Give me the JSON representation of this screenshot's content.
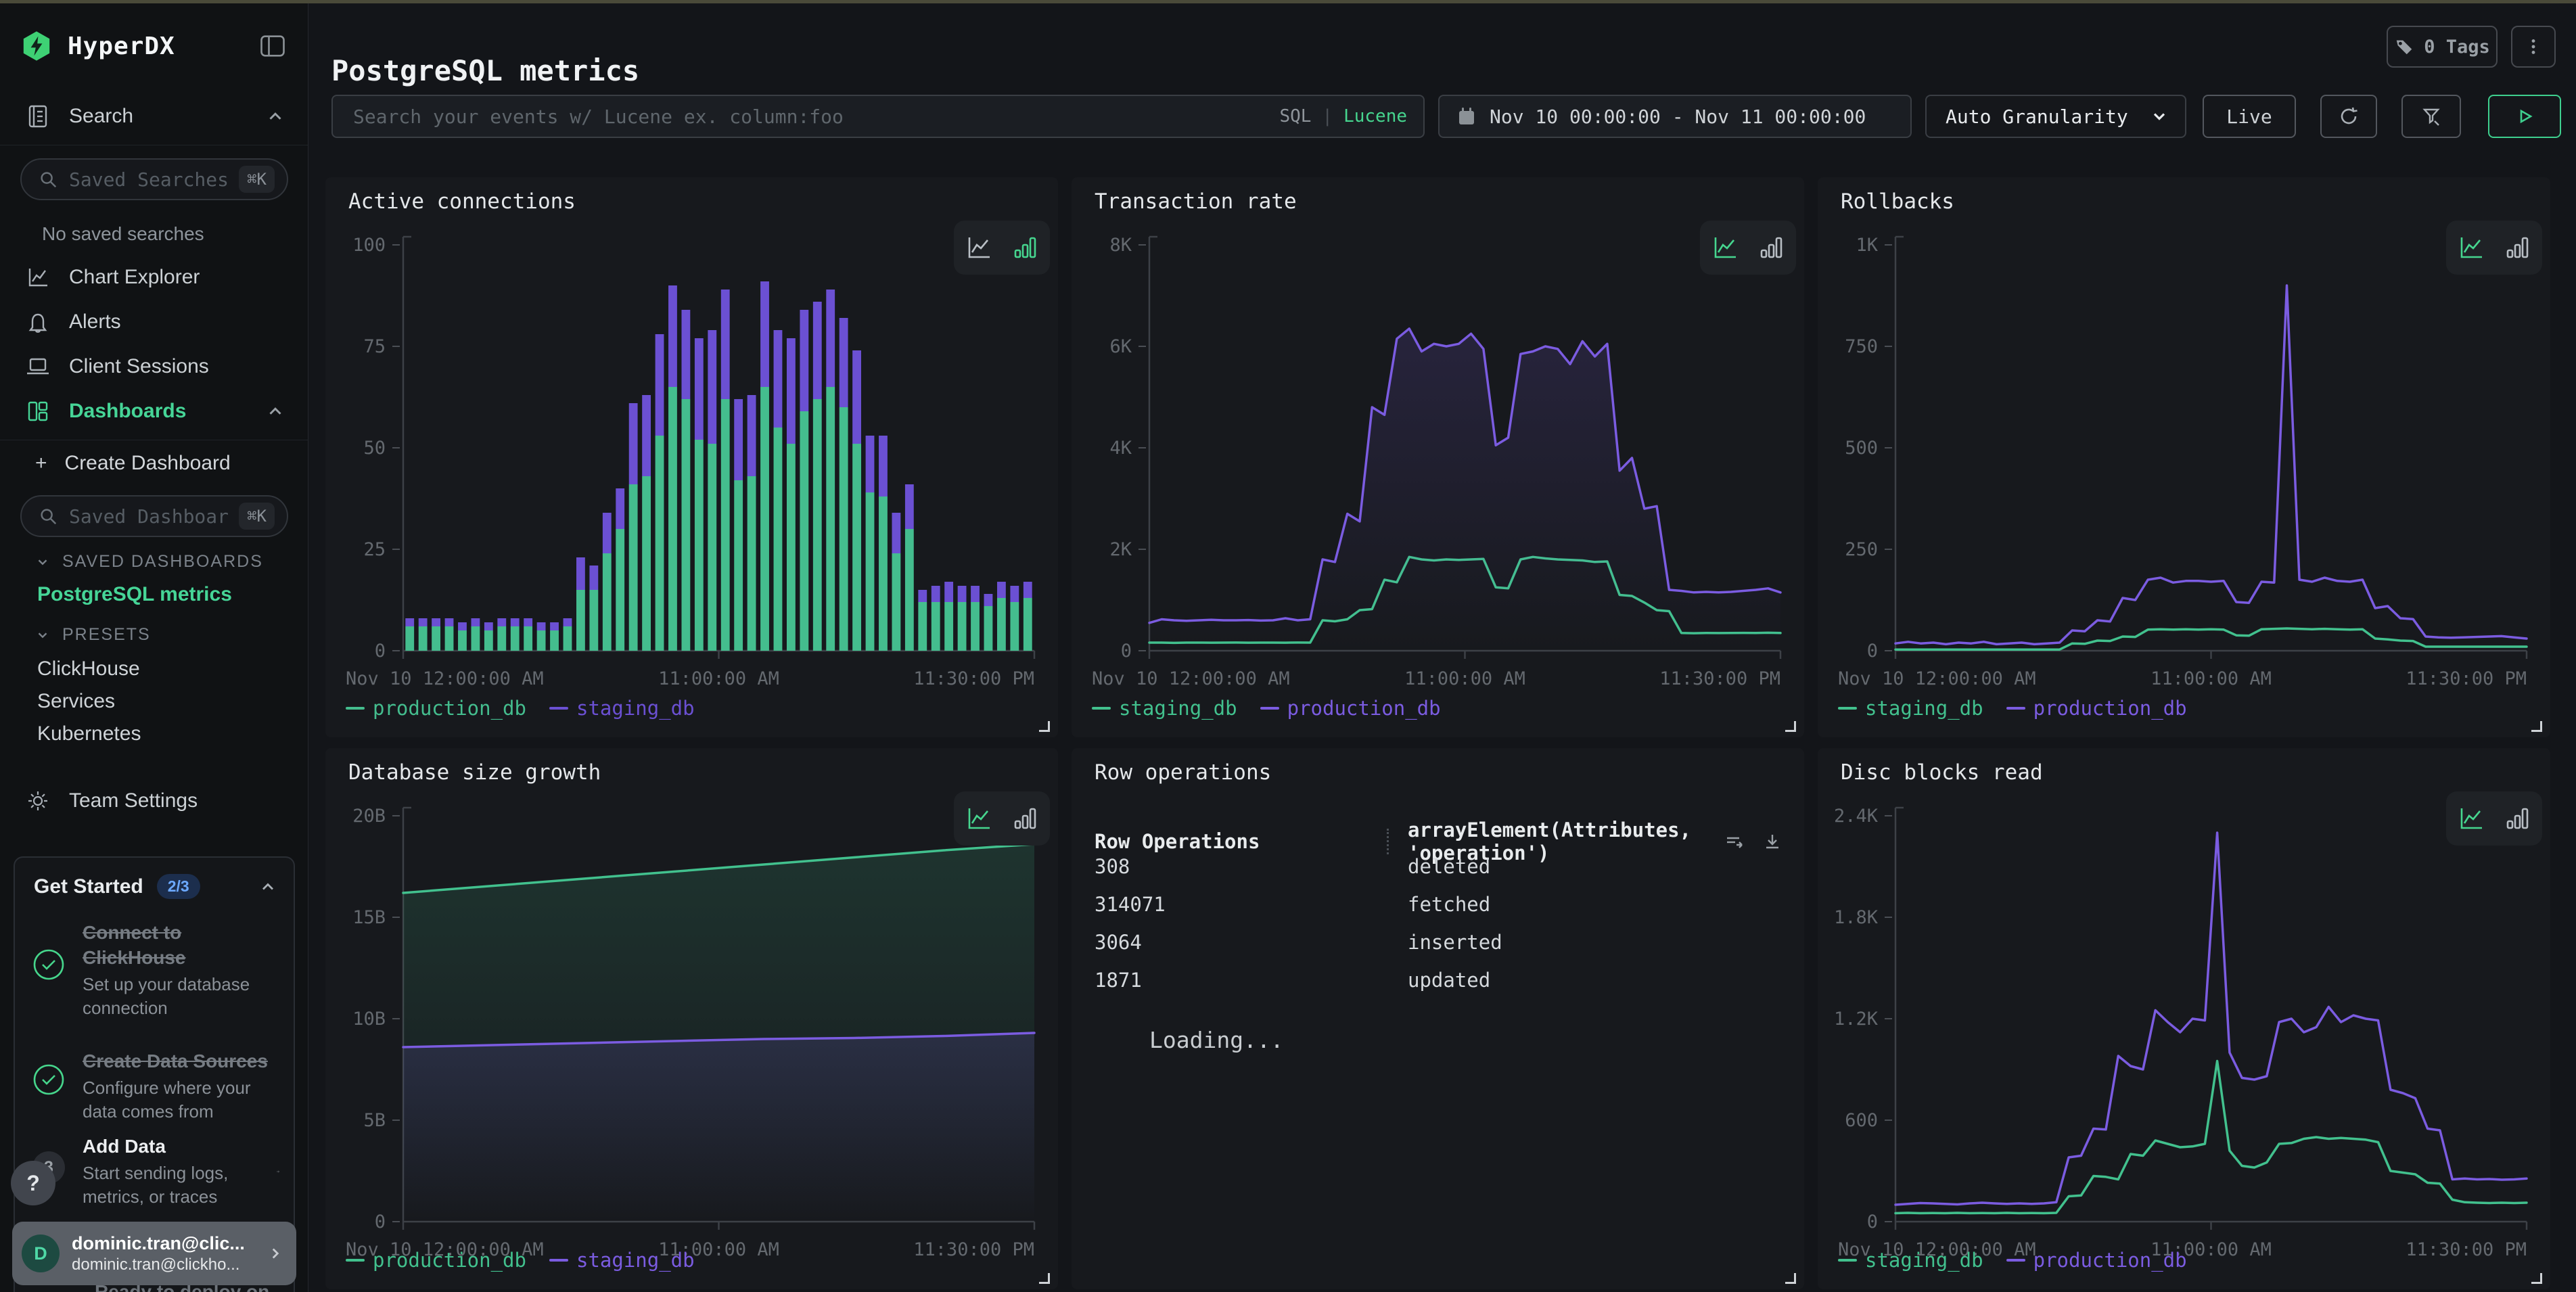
{
  "sidebar": {
    "logo": "HyperDX",
    "search_label": "Search",
    "no_saved_searches": "No saved searches",
    "saved_searches_placeholder": "Saved Searches",
    "saved_dashboards_placeholder": "Saved Dashboards",
    "shortcut": "⌘K",
    "nav_chart_explorer": "Chart Explorer",
    "nav_alerts": "Alerts",
    "nav_client_sessions": "Client Sessions",
    "nav_dashboards": "Dashboards",
    "create_dashboard_label": "Create Dashboard",
    "create_dashboard_plus": "+",
    "section_saved": "SAVED DASHBOARDS",
    "section_presets": "PRESETS",
    "saved_items": [
      "PostgreSQL metrics"
    ],
    "preset_items": [
      "ClickHouse",
      "Services",
      "Kubernetes"
    ],
    "team_settings": "Team Settings",
    "get_started": {
      "title": "Get Started",
      "badge": "2/3",
      "steps": [
        {
          "title": "Connect to ClickHouse",
          "desc": "Set up your database connection"
        },
        {
          "title": "Create Data Sources",
          "desc": "Configure where your data comes from"
        },
        {
          "title": "Add Data",
          "desc": "Start sending logs, metrics, or traces",
          "number": "3"
        }
      ],
      "hidden_step": "Ready to deploy on"
    },
    "help": "?",
    "user": {
      "initial": "D",
      "name": "dominic.tran@clic...",
      "email": "dominic.tran@clickho..."
    }
  },
  "header": {
    "title": "PostgreSQL metrics",
    "tags_label": "0 Tags"
  },
  "toolbar": {
    "search_placeholder": "Search your events w/ Lucene ex. column:foo",
    "sql": "SQL",
    "divider": "|",
    "lucene": "Lucene",
    "date_range": "Nov 10 00:00:00 - Nov 11 00:00:00",
    "granularity": "Auto Granularity",
    "live": "Live"
  },
  "colors": {
    "green_bar": "#44bd8e",
    "purple_bar": "#6b50d3",
    "green_line": "#42c18e",
    "purple_line": "#7b5ce1",
    "accent": "#46d597",
    "axis": "#3d4147",
    "tick_text": "#64696f"
  },
  "chart_data": [
    {
      "id": "c0",
      "type": "bar",
      "stacked": true,
      "title": "Active connections",
      "ymax": 100,
      "yticks": [
        {
          "v": 0,
          "l": "0"
        },
        {
          "v": 25,
          "l": "25"
        },
        {
          "v": 50,
          "l": "50"
        },
        {
          "v": 75,
          "l": "75"
        },
        {
          "v": 100,
          "l": "100"
        }
      ],
      "xticks": [
        "Nov 10 12:00:00 AM",
        "11:00:00 AM",
        "11:30:00 PM"
      ],
      "series": [
        {
          "name": "production_db",
          "color": "#44bd8e",
          "values": [
            6,
            6,
            6,
            6,
            5,
            6,
            5,
            6,
            6,
            6,
            5,
            5,
            6,
            15,
            15,
            24,
            30,
            41,
            43,
            53,
            65,
            62,
            52,
            51,
            62,
            42,
            43,
            65,
            55,
            51,
            59,
            62,
            65,
            60,
            51,
            39,
            38,
            24,
            30,
            12,
            12,
            12,
            12,
            12,
            11,
            13,
            12,
            13
          ]
        },
        {
          "name": "staging_db",
          "color": "#6b50d3",
          "values": [
            2,
            2,
            2,
            2,
            2,
            2,
            2,
            2,
            2,
            2,
            2,
            2,
            2,
            8,
            6,
            10,
            10,
            20,
            20,
            25,
            25,
            22,
            25,
            28,
            27,
            20,
            20,
            26,
            24,
            26,
            25,
            24,
            24,
            22,
            23,
            14,
            15,
            10,
            11,
            3,
            4,
            5,
            4,
            4,
            3,
            4,
            4,
            4
          ]
        }
      ]
    },
    {
      "id": "c1",
      "type": "line",
      "title": "Transaction rate",
      "ymax": 8000,
      "yticks": [
        {
          "v": 0,
          "l": "0"
        },
        {
          "v": 2000,
          "l": "2K"
        },
        {
          "v": 4000,
          "l": "4K"
        },
        {
          "v": 6000,
          "l": "6K"
        },
        {
          "v": 8000,
          "l": "8K"
        }
      ],
      "xticks": [
        "Nov 10 12:00:00 AM",
        "11:00:00 AM",
        "11:30:00 PM"
      ],
      "series": [
        {
          "name": "staging_db",
          "color": "#42c18e",
          "values": [
            160,
            160,
            155,
            160,
            160,
            158,
            160,
            162,
            158,
            160,
            160,
            158,
            162,
            160,
            600,
            580,
            620,
            800,
            820,
            1400,
            1350,
            1850,
            1800,
            1780,
            1800,
            1790,
            1800,
            1810,
            1250,
            1230,
            1800,
            1850,
            1820,
            1800,
            1790,
            1780,
            1750,
            1760,
            1100,
            1080,
            950,
            800,
            780,
            350,
            345,
            350,
            348,
            350,
            352,
            350,
            355,
            350
          ]
        },
        {
          "name": "production_db",
          "color": "#7b5ce1",
          "fill": true,
          "values": [
            550,
            620,
            600,
            590,
            600,
            610,
            600,
            600,
            605,
            595,
            600,
            640,
            600,
            620,
            1800,
            1750,
            2700,
            2550,
            4800,
            4650,
            6150,
            6350,
            5900,
            6050,
            6000,
            6050,
            6250,
            5950,
            4050,
            4200,
            5850,
            5900,
            6000,
            5950,
            5650,
            6100,
            5800,
            6050,
            3550,
            3800,
            2800,
            2850,
            1200,
            1180,
            1150,
            1160,
            1150,
            1160,
            1180,
            1200,
            1230,
            1150
          ]
        }
      ]
    },
    {
      "id": "c2",
      "type": "line",
      "title": "Rollbacks",
      "ymax": 1000,
      "yticks": [
        {
          "v": 0,
          "l": "0"
        },
        {
          "v": 250,
          "l": "250"
        },
        {
          "v": 500,
          "l": "500"
        },
        {
          "v": 750,
          "l": "750"
        },
        {
          "v": 1000,
          "l": "1K"
        }
      ],
      "xticks": [
        "Nov 10 12:00:00 AM",
        "11:00:00 AM",
        "11:30:00 PM"
      ],
      "series": [
        {
          "name": "staging_db",
          "color": "#42c18e",
          "values": [
            3,
            3,
            3,
            3,
            3,
            3,
            3,
            3,
            3,
            3,
            3,
            3,
            3,
            3,
            18,
            17,
            25,
            24,
            35,
            34,
            52,
            53,
            52,
            53,
            52,
            53,
            52,
            38,
            37,
            53,
            54,
            55,
            54,
            53,
            54,
            53,
            52,
            53,
            30,
            28,
            25,
            24,
            10,
            10,
            10,
            10,
            10,
            10,
            10,
            10,
            10
          ]
        },
        {
          "name": "production_db",
          "color": "#7b5ce1",
          "values": [
            18,
            22,
            18,
            20,
            16,
            20,
            18,
            22,
            16,
            18,
            20,
            16,
            18,
            20,
            50,
            48,
            75,
            72,
            130,
            125,
            175,
            180,
            168,
            172,
            172,
            170,
            172,
            120,
            118,
            170,
            168,
            900,
            175,
            170,
            180,
            172,
            170,
            175,
            105,
            110,
            80,
            78,
            35,
            33,
            32,
            33,
            34,
            35,
            36,
            33,
            30
          ]
        }
      ]
    },
    {
      "id": "c3",
      "type": "line",
      "title": "Database size growth",
      "ymax": 20,
      "yticks": [
        {
          "v": 0,
          "l": "0"
        },
        {
          "v": 5,
          "l": "5B"
        },
        {
          "v": 10,
          "l": "10B"
        },
        {
          "v": 15,
          "l": "15B"
        },
        {
          "v": 20,
          "l": "20B"
        }
      ],
      "xticks": [
        "Nov 10 12:00:00 AM",
        "11:00:00 AM",
        "11:30:00 PM"
      ],
      "series": [
        {
          "name": "production_db",
          "color": "#42c18e",
          "fill": true,
          "values": [
            16.2,
            16.55,
            16.9,
            17.25,
            17.6,
            17.95,
            18.3,
            18.6
          ]
        },
        {
          "name": "staging_db",
          "color": "#7b5ce1",
          "fill": true,
          "values": [
            8.6,
            8.7,
            8.8,
            8.9,
            9.0,
            9.05,
            9.15,
            9.3
          ]
        }
      ]
    },
    {
      "id": "c4",
      "type": "table",
      "title": "Row operations",
      "col1": "Row Operations",
      "col2": "arrayElement(Attributes, 'operation')",
      "rows": [
        [
          "308",
          "deleted"
        ],
        [
          "314071",
          "fetched"
        ],
        [
          "3064",
          "inserted"
        ],
        [
          "1871",
          "updated"
        ]
      ],
      "loading": "Loading..."
    },
    {
      "id": "c5",
      "type": "line",
      "title": "Disc blocks read",
      "ymax": 2400,
      "yticks": [
        {
          "v": 0,
          "l": "0"
        },
        {
          "v": 600,
          "l": "600"
        },
        {
          "v": 1200,
          "l": "1.2K"
        },
        {
          "v": 1800,
          "l": "1.8K"
        },
        {
          "v": 2400,
          "l": "2.4K"
        }
      ],
      "xticks": [
        "Nov 10 12:00:00 AM",
        "11:00:00 AM",
        "11:30:00 PM"
      ],
      "series": [
        {
          "name": "staging_db",
          "color": "#42c18e",
          "values": [
            50,
            52,
            50,
            51,
            50,
            52,
            50,
            51,
            50,
            52,
            50,
            51,
            50,
            52,
            150,
            155,
            270,
            265,
            250,
            400,
            390,
            480,
            460,
            440,
            445,
            460,
            950,
            420,
            330,
            320,
            350,
            460,
            465,
            490,
            500,
            490,
            495,
            490,
            485,
            470,
            300,
            290,
            280,
            230,
            225,
            130,
            115,
            112,
            110,
            112,
            110,
            112
          ]
        },
        {
          "name": "production_db",
          "color": "#7b5ce1",
          "values": [
            100,
            105,
            110,
            108,
            105,
            102,
            108,
            112,
            108,
            105,
            108,
            105,
            108,
            115,
            380,
            390,
            550,
            545,
            980,
            920,
            900,
            1250,
            1180,
            1120,
            1200,
            1190,
            2300,
            1000,
            850,
            840,
            860,
            1180,
            1200,
            1120,
            1150,
            1270,
            1180,
            1220,
            1200,
            1190,
            780,
            760,
            730,
            550,
            540,
            250,
            255,
            250,
            252,
            248,
            250,
            255
          ]
        }
      ]
    }
  ]
}
